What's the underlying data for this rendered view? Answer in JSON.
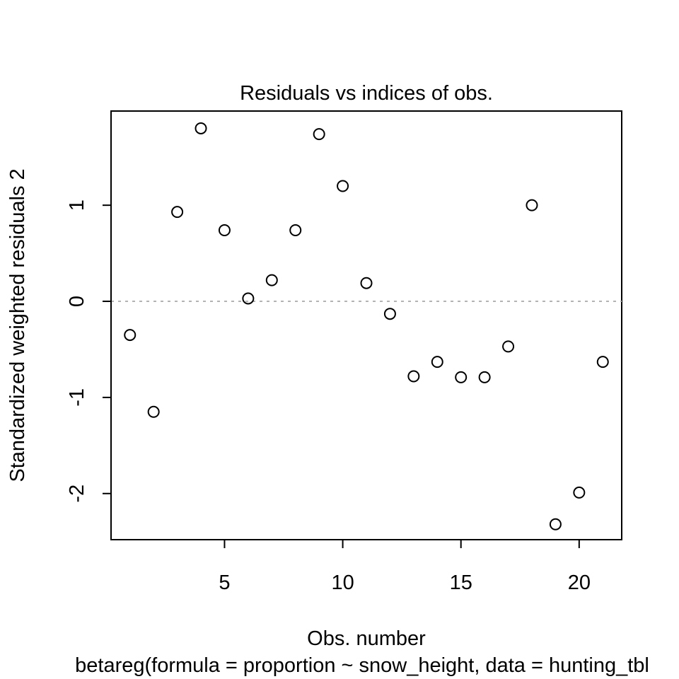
{
  "chart_data": {
    "type": "scatter",
    "title": "Residuals vs indices of obs.",
    "xlabel": "Obs. number",
    "ylabel": "Standardized weighted residuals 2",
    "subtitle": "betareg(formula = proportion ~ snow_height, data = hunting_tbl",
    "xlim": [
      0.2,
      21.8
    ],
    "ylim": [
      -2.48,
      1.98
    ],
    "xticks": [
      5,
      10,
      15,
      20
    ],
    "yticks": [
      -2,
      -1,
      0,
      1
    ],
    "reference_line": {
      "y": 0,
      "style": "dotted",
      "color": "#b3b3b3"
    },
    "grid": false,
    "marker": "open-circle",
    "series": [
      {
        "x": [
          1,
          2,
          3,
          4,
          5,
          6,
          7,
          8,
          9,
          10,
          11,
          12,
          13,
          14,
          15,
          16,
          17,
          18,
          19,
          20,
          21
        ],
        "y": [
          -0.35,
          -1.15,
          0.93,
          1.8,
          0.74,
          0.03,
          0.22,
          0.74,
          1.74,
          1.2,
          0.19,
          -0.13,
          -0.78,
          -0.63,
          -0.79,
          -0.79,
          -0.47,
          1.0,
          -2.32,
          -1.99,
          -0.63
        ]
      }
    ]
  }
}
